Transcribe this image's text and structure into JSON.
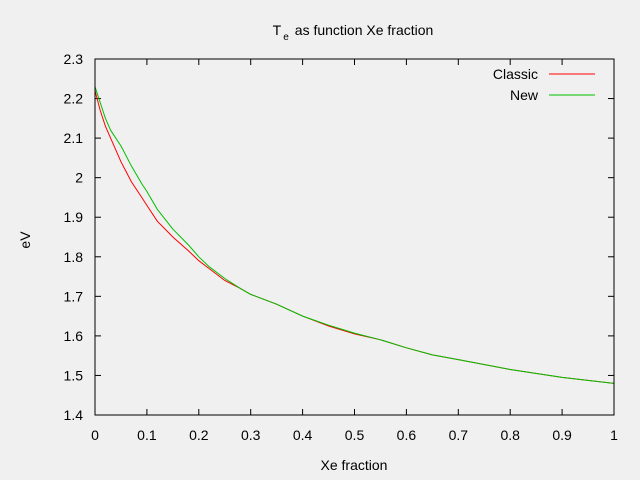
{
  "chart_data": {
    "type": "line",
    "title": {
      "main": "T",
      "subscript": "e",
      "rest": "as function Xe fraction"
    },
    "xlabel": "Xe fraction",
    "ylabel": "eV",
    "xlim": [
      0,
      1
    ],
    "ylim": [
      1.4,
      2.3
    ],
    "xticks": [
      0,
      0.1,
      0.2,
      0.3,
      0.4,
      0.5,
      0.6,
      0.7,
      0.8,
      0.9,
      1
    ],
    "xtick_labels": [
      "0",
      "0.1",
      "0.2",
      "0.3",
      "0.4",
      "0.5",
      "0.6",
      "0.7",
      "0.8",
      "0.9",
      "1"
    ],
    "yticks": [
      1.4,
      1.5,
      1.6,
      1.7,
      1.8,
      1.9,
      2.0,
      2.1,
      2.2,
      2.3
    ],
    "ytick_labels": [
      "1.4",
      "1.5",
      "1.6",
      "1.7",
      "1.8",
      "1.9",
      "2",
      "2.1",
      "2.2",
      "2.3"
    ],
    "grid": false,
    "legend_position": "top-right",
    "series": [
      {
        "name": "Classic",
        "color": "#ff0000",
        "x": [
          0,
          0.01,
          0.02,
          0.03,
          0.05,
          0.07,
          0.09,
          0.1,
          0.12,
          0.15,
          0.18,
          0.2,
          0.22,
          0.25,
          0.28,
          0.3,
          0.35,
          0.4,
          0.45,
          0.5,
          0.55,
          0.6,
          0.65,
          0.7,
          0.8,
          0.9,
          1.0
        ],
        "y": [
          2.22,
          2.17,
          2.13,
          2.1,
          2.04,
          1.99,
          1.95,
          1.93,
          1.89,
          1.85,
          1.815,
          1.79,
          1.77,
          1.74,
          1.72,
          1.705,
          1.68,
          1.65,
          1.625,
          1.605,
          1.59,
          1.57,
          1.552,
          1.54,
          1.515,
          1.495,
          1.48
        ]
      },
      {
        "name": "New",
        "color": "#00c000",
        "x": [
          0,
          0.01,
          0.02,
          0.03,
          0.05,
          0.07,
          0.09,
          0.1,
          0.12,
          0.15,
          0.18,
          0.2,
          0.22,
          0.25,
          0.28,
          0.3,
          0.35,
          0.4,
          0.45,
          0.5,
          0.55,
          0.6,
          0.65,
          0.7,
          0.8,
          0.9,
          1.0
        ],
        "y": [
          2.23,
          2.19,
          2.15,
          2.12,
          2.08,
          2.03,
          1.985,
          1.965,
          1.92,
          1.87,
          1.83,
          1.8,
          1.775,
          1.745,
          1.72,
          1.705,
          1.68,
          1.65,
          1.627,
          1.607,
          1.59,
          1.57,
          1.552,
          1.54,
          1.515,
          1.495,
          1.48
        ]
      }
    ]
  }
}
